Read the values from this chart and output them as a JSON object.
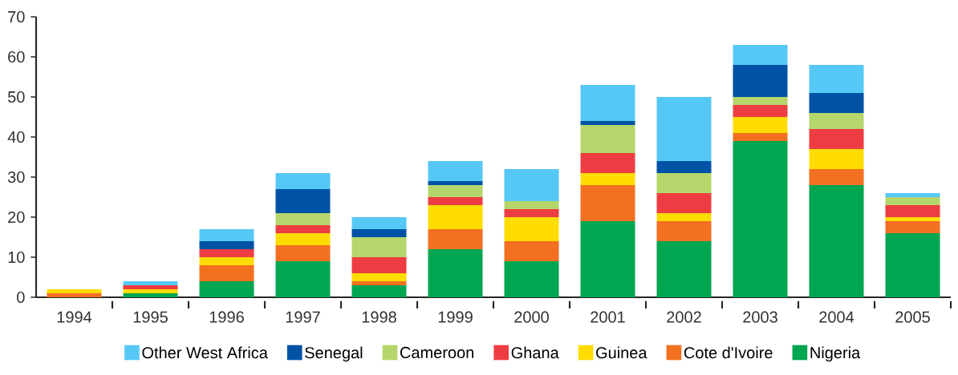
{
  "chart_data": {
    "type": "bar",
    "stacked": true,
    "categories": [
      "1994",
      "1995",
      "1996",
      "1997",
      "1998",
      "1999",
      "2000",
      "2001",
      "2002",
      "2003",
      "2004",
      "2005"
    ],
    "series": [
      {
        "name": "Nigeria",
        "color": "#00a650",
        "values": [
          0,
          1,
          4,
          9,
          3,
          12,
          9,
          19,
          14,
          39,
          28,
          16
        ]
      },
      {
        "name": "Cote d'Ivoire",
        "color": "#f37021",
        "values": [
          1,
          0,
          4,
          4,
          1,
          5,
          5,
          9,
          5,
          2,
          4,
          3
        ]
      },
      {
        "name": "Guinea",
        "color": "#ffdc00",
        "values": [
          1,
          1,
          2,
          3,
          2,
          6,
          6,
          3,
          2,
          4,
          5,
          1
        ]
      },
      {
        "name": "Ghana",
        "color": "#ee3d42",
        "values": [
          0,
          1,
          2,
          2,
          4,
          2,
          2,
          5,
          5,
          3,
          5,
          3
        ]
      },
      {
        "name": "Cameroon",
        "color": "#b5d66b",
        "values": [
          0,
          0,
          0,
          3,
          5,
          3,
          2,
          7,
          5,
          2,
          4,
          2
        ]
      },
      {
        "name": "Senegal",
        "color": "#0052a5",
        "values": [
          0,
          0,
          2,
          6,
          2,
          1,
          0,
          1,
          3,
          8,
          5,
          0
        ]
      },
      {
        "name": "Other West Africa",
        "color": "#56c8f5",
        "values": [
          0,
          1,
          3,
          4,
          3,
          5,
          8,
          9,
          16,
          5,
          7,
          1
        ]
      }
    ],
    "ylim": [
      0,
      70
    ],
    "yticks": [
      0,
      10,
      20,
      30,
      40,
      50,
      60,
      70
    ],
    "legend": "bottom",
    "grid": false
  }
}
